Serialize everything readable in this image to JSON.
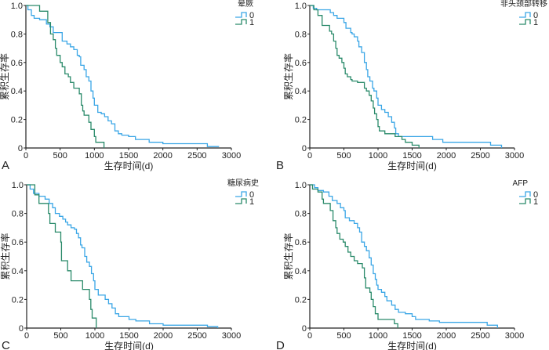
{
  "colors": {
    "group0": "#3aa6e6",
    "group1": "#2a8a6a",
    "axis": "#222222"
  },
  "chart_data": [
    {
      "type": "line",
      "panel_letter": "A",
      "xlabel": "生存时间(d)",
      "ylabel": "累积生存率",
      "xlim": [
        0,
        3000
      ],
      "ylim": [
        0,
        1
      ],
      "xticks": [
        "0",
        "500",
        "1000",
        "1500",
        "2000",
        "2500",
        "3000"
      ],
      "yticks": [
        "0",
        "0.2",
        "0.4",
        "0.6",
        "0.8",
        "1.0"
      ],
      "legend": {
        "title": "晕厥",
        "placement": "top-right",
        "entries": [
          "0",
          "1"
        ]
      },
      "series": [
        {
          "name": "0",
          "points": [
            [
              0,
              1
            ],
            [
              30,
              0.97
            ],
            [
              80,
              0.93
            ],
            [
              120,
              0.91
            ],
            [
              200,
              0.9
            ],
            [
              300,
              0.87
            ],
            [
              350,
              0.85
            ],
            [
              400,
              0.81
            ],
            [
              500,
              0.81
            ],
            [
              530,
              0.75
            ],
            [
              600,
              0.73
            ],
            [
              650,
              0.71
            ],
            [
              700,
              0.69
            ],
            [
              750,
              0.65
            ],
            [
              780,
              0.64
            ],
            [
              800,
              0.58
            ],
            [
              850,
              0.55
            ],
            [
              880,
              0.5
            ],
            [
              920,
              0.47
            ],
            [
              950,
              0.4
            ],
            [
              980,
              0.35
            ],
            [
              1000,
              0.3
            ],
            [
              1050,
              0.25
            ],
            [
              1100,
              0.24
            ],
            [
              1150,
              0.22
            ],
            [
              1200,
              0.19
            ],
            [
              1250,
              0.17
            ],
            [
              1300,
              0.12
            ],
            [
              1350,
              0.1
            ],
            [
              1400,
              0.09
            ],
            [
              1500,
              0.08
            ],
            [
              1600,
              0.06
            ],
            [
              1800,
              0.04
            ],
            [
              2000,
              0.03
            ],
            [
              2650,
              0.01
            ],
            [
              2820,
              0.01
            ]
          ]
        },
        {
          "name": "1",
          "points": [
            [
              0,
              1
            ],
            [
              200,
              0.96
            ],
            [
              320,
              0.88
            ],
            [
              360,
              0.8
            ],
            [
              400,
              0.76
            ],
            [
              430,
              0.7
            ],
            [
              450,
              0.65
            ],
            [
              500,
              0.6
            ],
            [
              530,
              0.57
            ],
            [
              570,
              0.52
            ],
            [
              620,
              0.5
            ],
            [
              650,
              0.46
            ],
            [
              700,
              0.42
            ],
            [
              780,
              0.38
            ],
            [
              810,
              0.3
            ],
            [
              830,
              0.26
            ],
            [
              850,
              0.23
            ],
            [
              920,
              0.18
            ],
            [
              950,
              0.13
            ],
            [
              1000,
              0.08
            ],
            [
              1020,
              0.04
            ],
            [
              1140,
              0
            ]
          ]
        }
      ]
    },
    {
      "type": "line",
      "panel_letter": "B",
      "xlabel": "生存时间(d)",
      "ylabel": "累积生存率",
      "xlim": [
        0,
        3000
      ],
      "ylim": [
        0,
        1
      ],
      "xticks": [
        "0",
        "500",
        "1000",
        "1500",
        "2000",
        "2500",
        "3000"
      ],
      "yticks": [
        "0",
        "0.2",
        "0.4",
        "0.6",
        "0.8",
        "1.0"
      ],
      "legend": {
        "title": "非头颈部转移",
        "placement": "top-right",
        "entries": [
          "0",
          "1"
        ]
      },
      "series": [
        {
          "name": "0",
          "points": [
            [
              0,
              1
            ],
            [
              50,
              0.98
            ],
            [
              100,
              0.97
            ],
            [
              300,
              0.95
            ],
            [
              350,
              0.93
            ],
            [
              400,
              0.91
            ],
            [
              500,
              0.88
            ],
            [
              530,
              0.84
            ],
            [
              600,
              0.81
            ],
            [
              620,
              0.8
            ],
            [
              650,
              0.78
            ],
            [
              700,
              0.75
            ],
            [
              720,
              0.71
            ],
            [
              760,
              0.67
            ],
            [
              800,
              0.6
            ],
            [
              830,
              0.55
            ],
            [
              850,
              0.5
            ],
            [
              880,
              0.47
            ],
            [
              920,
              0.42
            ],
            [
              940,
              0.4
            ],
            [
              980,
              0.35
            ],
            [
              1000,
              0.3
            ],
            [
              1050,
              0.27
            ],
            [
              1100,
              0.25
            ],
            [
              1150,
              0.22
            ],
            [
              1200,
              0.18
            ],
            [
              1240,
              0.14
            ],
            [
              1260,
              0.1
            ],
            [
              1300,
              0.08
            ],
            [
              1800,
              0.06
            ],
            [
              1950,
              0.04
            ],
            [
              2650,
              0.02
            ],
            [
              2810,
              0
            ]
          ]
        },
        {
          "name": "1",
          "points": [
            [
              0,
              1
            ],
            [
              60,
              0.97
            ],
            [
              120,
              0.93
            ],
            [
              180,
              0.86
            ],
            [
              290,
              0.82
            ],
            [
              320,
              0.8
            ],
            [
              350,
              0.75
            ],
            [
              380,
              0.7
            ],
            [
              400,
              0.65
            ],
            [
              430,
              0.63
            ],
            [
              470,
              0.6
            ],
            [
              500,
              0.56
            ],
            [
              520,
              0.52
            ],
            [
              550,
              0.5
            ],
            [
              600,
              0.48
            ],
            [
              620,
              0.47
            ],
            [
              700,
              0.46
            ],
            [
              800,
              0.42
            ],
            [
              830,
              0.4
            ],
            [
              870,
              0.37
            ],
            [
              900,
              0.33
            ],
            [
              930,
              0.28
            ],
            [
              950,
              0.24
            ],
            [
              980,
              0.2
            ],
            [
              1000,
              0.15
            ],
            [
              1020,
              0.12
            ],
            [
              1100,
              0.1
            ],
            [
              1250,
              0.08
            ],
            [
              1350,
              0.06
            ],
            [
              1400,
              0.04
            ],
            [
              1500,
              0.02
            ],
            [
              1600,
              0
            ]
          ]
        }
      ]
    },
    {
      "type": "line",
      "panel_letter": "C",
      "xlabel": "生存时间(d)",
      "ylabel": "累积生存率",
      "xlim": [
        0,
        3000
      ],
      "ylim": [
        0,
        1
      ],
      "xticks": [
        "0",
        "500",
        "1000",
        "1500",
        "2000",
        "2500",
        "3000"
      ],
      "yticks": [
        "0",
        "0.2",
        "0.4",
        "0.6",
        "0.8",
        "1.0"
      ],
      "legend": {
        "title": "糖尿病史",
        "placement": "top-right",
        "entries": [
          "0",
          "1"
        ]
      },
      "series": [
        {
          "name": "0",
          "points": [
            [
              0,
              1
            ],
            [
              50,
              0.97
            ],
            [
              100,
              0.94
            ],
            [
              180,
              0.92
            ],
            [
              270,
              0.9
            ],
            [
              330,
              0.87
            ],
            [
              380,
              0.84
            ],
            [
              420,
              0.8
            ],
            [
              480,
              0.78
            ],
            [
              530,
              0.76
            ],
            [
              570,
              0.74
            ],
            [
              600,
              0.72
            ],
            [
              650,
              0.7
            ],
            [
              700,
              0.69
            ],
            [
              730,
              0.66
            ],
            [
              760,
              0.63
            ],
            [
              790,
              0.58
            ],
            [
              810,
              0.56
            ],
            [
              850,
              0.5
            ],
            [
              880,
              0.46
            ],
            [
              920,
              0.43
            ],
            [
              950,
              0.38
            ],
            [
              980,
              0.33
            ],
            [
              1000,
              0.27
            ],
            [
              1050,
              0.23
            ],
            [
              1150,
              0.2
            ],
            [
              1200,
              0.17
            ],
            [
              1250,
              0.14
            ],
            [
              1300,
              0.1
            ],
            [
              1350,
              0.08
            ],
            [
              1500,
              0.06
            ],
            [
              1600,
              0.05
            ],
            [
              1800,
              0.03
            ],
            [
              2000,
              0.02
            ],
            [
              2650,
              0.01
            ],
            [
              2800,
              0
            ]
          ]
        },
        {
          "name": "1",
          "points": [
            [
              0,
              1
            ],
            [
              120,
              0.93
            ],
            [
              180,
              0.87
            ],
            [
              320,
              0.8
            ],
            [
              340,
              0.73
            ],
            [
              420,
              0.67
            ],
            [
              500,
              0.6
            ],
            [
              510,
              0.47
            ],
            [
              600,
              0.4
            ],
            [
              650,
              0.33
            ],
            [
              820,
              0.27
            ],
            [
              920,
              0.2
            ],
            [
              940,
              0.13
            ],
            [
              960,
              0.07
            ],
            [
              1020,
              0
            ]
          ]
        }
      ]
    },
    {
      "type": "line",
      "panel_letter": "D",
      "xlabel": "生存时间(d)",
      "ylabel": "累积生存率",
      "xlim": [
        0,
        3000
      ],
      "ylim": [
        0,
        1
      ],
      "xticks": [
        "0",
        "500",
        "1000",
        "1500",
        "2000",
        "2500",
        "3000"
      ],
      "yticks": [
        "0",
        "0.2",
        "0.4",
        "0.6",
        "0.8",
        "1.0"
      ],
      "legend": {
        "title": "AFP",
        "placement": "top-right",
        "entries": [
          "0",
          "1"
        ]
      },
      "series": [
        {
          "name": "0",
          "points": [
            [
              0,
              1
            ],
            [
              70,
              0.98
            ],
            [
              120,
              0.96
            ],
            [
              200,
              0.95
            ],
            [
              280,
              0.92
            ],
            [
              330,
              0.89
            ],
            [
              400,
              0.87
            ],
            [
              450,
              0.84
            ],
            [
              500,
              0.82
            ],
            [
              520,
              0.77
            ],
            [
              580,
              0.75
            ],
            [
              650,
              0.73
            ],
            [
              700,
              0.7
            ],
            [
              730,
              0.67
            ],
            [
              760,
              0.6
            ],
            [
              800,
              0.57
            ],
            [
              830,
              0.54
            ],
            [
              870,
              0.49
            ],
            [
              900,
              0.44
            ],
            [
              930,
              0.38
            ],
            [
              960,
              0.34
            ],
            [
              980,
              0.3
            ],
            [
              1000,
              0.27
            ],
            [
              1050,
              0.25
            ],
            [
              1100,
              0.22
            ],
            [
              1130,
              0.19
            ],
            [
              1200,
              0.16
            ],
            [
              1250,
              0.13
            ],
            [
              1300,
              0.11
            ],
            [
              1400,
              0.1
            ],
            [
              1500,
              0.08
            ],
            [
              1550,
              0.06
            ],
            [
              1750,
              0.05
            ],
            [
              1900,
              0.04
            ],
            [
              2600,
              0.02
            ],
            [
              2750,
              0
            ]
          ]
        },
        {
          "name": "1",
          "points": [
            [
              0,
              1
            ],
            [
              40,
              0.97
            ],
            [
              120,
              0.95
            ],
            [
              180,
              0.9
            ],
            [
              200,
              0.87
            ],
            [
              300,
              0.82
            ],
            [
              340,
              0.75
            ],
            [
              380,
              0.7
            ],
            [
              400,
              0.66
            ],
            [
              440,
              0.62
            ],
            [
              490,
              0.6
            ],
            [
              520,
              0.57
            ],
            [
              560,
              0.53
            ],
            [
              600,
              0.5
            ],
            [
              650,
              0.47
            ],
            [
              700,
              0.45
            ],
            [
              770,
              0.42
            ],
            [
              800,
              0.35
            ],
            [
              820,
              0.28
            ],
            [
              880,
              0.25
            ],
            [
              900,
              0.2
            ],
            [
              930,
              0.15
            ],
            [
              960,
              0.1
            ],
            [
              1000,
              0.06
            ],
            [
              1240,
              0.03
            ],
            [
              1290,
              0
            ]
          ]
        }
      ]
    }
  ]
}
